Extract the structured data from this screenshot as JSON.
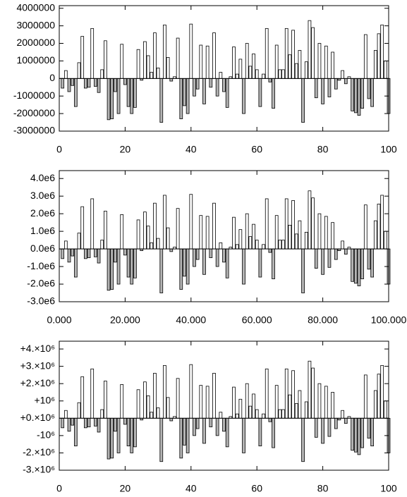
{
  "chart_data": [
    {
      "type": "bar",
      "color_positive": "#ffffff",
      "color_negative": "#b4b4b4",
      "x": [
        1,
        2,
        3,
        4,
        5,
        6,
        7,
        8,
        9,
        10,
        11,
        12,
        13,
        14,
        15,
        16,
        17,
        18,
        19,
        20,
        21,
        22,
        23,
        24,
        25,
        26,
        27,
        28,
        29,
        30,
        31,
        32,
        33,
        34,
        35,
        36,
        37,
        38,
        39,
        40,
        41,
        42,
        43,
        44,
        45,
        46,
        47,
        48,
        49,
        50,
        51,
        52,
        53,
        54,
        55,
        56,
        57,
        58,
        59,
        60,
        61,
        62,
        63,
        64,
        65,
        66,
        67,
        68,
        69,
        70,
        71,
        72,
        73,
        74,
        75,
        76,
        77,
        78,
        79,
        80,
        81,
        82,
        83,
        84,
        85,
        86,
        87,
        88,
        89,
        90,
        91,
        92,
        93,
        94,
        95,
        96,
        97,
        98,
        99,
        100
      ],
      "values": [
        -550000,
        450000,
        -750000,
        -400000,
        -1600000,
        900000,
        2400000,
        -550000,
        -500000,
        2850000,
        -450000,
        -800000,
        500000,
        2150000,
        -2350000,
        -2300000,
        -750000,
        -2000000,
        1950000,
        -350000,
        -1600000,
        -2000000,
        -1650000,
        1650000,
        -100000,
        2100000,
        1300000,
        350000,
        2600000,
        600000,
        -2500000,
        3050000,
        1200000,
        -150000,
        100000,
        2300000,
        -2300000,
        -1550000,
        -2000000,
        3100000,
        -1000000,
        -600000,
        1900000,
        -1450000,
        1850000,
        -500000,
        2600000,
        -1000000,
        350000,
        -750000,
        -1650000,
        100000,
        1800000,
        250000,
        1100000,
        -2000000,
        2000000,
        700000,
        1400000,
        500000,
        -1600000,
        250000,
        2850000,
        -200000,
        -1700000,
        1900000,
        500000,
        500000,
        2850000,
        1350000,
        2750000,
        850000,
        1600000,
        -2500000,
        950000,
        3300000,
        2900000,
        -1100000,
        2000000,
        -1450000,
        1850000,
        -1050000,
        1500000,
        -600000,
        -100000,
        450000,
        -300000,
        100000,
        -1850000,
        -1950000,
        -2100000,
        -1700000,
        2500000,
        -1150000,
        -1600000,
        1600000,
        2550000,
        3050000,
        1000000,
        -2000000
      ],
      "xlim": [
        0,
        100
      ],
      "ylim": [
        -3000000,
        4150000
      ],
      "xticks": [
        0,
        20,
        40,
        60,
        80,
        100
      ],
      "yticks": [
        -3000000,
        -2000000,
        -1000000,
        0,
        1000000,
        2000000,
        3000000,
        4000000
      ]
    },
    {
      "type": "bar",
      "color_positive": "#ffffff",
      "color_negative": "#b4b4b4",
      "x": [
        1,
        2,
        3,
        4,
        5,
        6,
        7,
        8,
        9,
        10,
        11,
        12,
        13,
        14,
        15,
        16,
        17,
        18,
        19,
        20,
        21,
        22,
        23,
        24,
        25,
        26,
        27,
        28,
        29,
        30,
        31,
        32,
        33,
        34,
        35,
        36,
        37,
        38,
        39,
        40,
        41,
        42,
        43,
        44,
        45,
        46,
        47,
        48,
        49,
        50,
        51,
        52,
        53,
        54,
        55,
        56,
        57,
        58,
        59,
        60,
        61,
        62,
        63,
        64,
        65,
        66,
        67,
        68,
        69,
        70,
        71,
        72,
        73,
        74,
        75,
        76,
        77,
        78,
        79,
        80,
        81,
        82,
        83,
        84,
        85,
        86,
        87,
        88,
        89,
        90,
        91,
        92,
        93,
        94,
        95,
        96,
        97,
        98,
        99,
        100
      ],
      "values": [
        -550000,
        450000,
        -750000,
        -400000,
        -1600000,
        900000,
        2400000,
        -550000,
        -500000,
        2850000,
        -450000,
        -800000,
        500000,
        2150000,
        -2350000,
        -2300000,
        -750000,
        -2000000,
        1950000,
        -350000,
        -1600000,
        -2000000,
        -1650000,
        1650000,
        -100000,
        2100000,
        1300000,
        350000,
        2600000,
        600000,
        -2500000,
        3050000,
        1200000,
        -150000,
        100000,
        2300000,
        -2300000,
        -1550000,
        -2000000,
        3100000,
        -1000000,
        -600000,
        1900000,
        -1450000,
        1850000,
        -500000,
        2600000,
        -1000000,
        350000,
        -750000,
        -1650000,
        100000,
        1800000,
        250000,
        1100000,
        -2000000,
        2000000,
        700000,
        1400000,
        500000,
        -1600000,
        250000,
        2850000,
        -200000,
        -1700000,
        1900000,
        500000,
        500000,
        2850000,
        1350000,
        2750000,
        850000,
        1600000,
        -2500000,
        950000,
        3300000,
        2900000,
        -1100000,
        2000000,
        -1450000,
        1850000,
        -1050000,
        1500000,
        -600000,
        -100000,
        450000,
        -300000,
        100000,
        -1850000,
        -1950000,
        -2100000,
        -1700000,
        2500000,
        -1150000,
        -1600000,
        1600000,
        2550000,
        3050000,
        1000000,
        -2000000
      ],
      "xlim": [
        0,
        100
      ],
      "ylim": [
        -3000000,
        4450000
      ],
      "xticks": [
        {
          "value": 0,
          "label": "0.000"
        },
        {
          "value": 20,
          "label": "20.000"
        },
        {
          "value": 40,
          "label": "40.000"
        },
        {
          "value": 60,
          "label": "60.000"
        },
        {
          "value": 80,
          "label": "80.000"
        },
        {
          "value": 100,
          "label": "100.000"
        }
      ],
      "yticks": [
        {
          "value": -3000000,
          "label": "-3.0e6"
        },
        {
          "value": -2000000,
          "label": "-2.0e6"
        },
        {
          "value": -1000000,
          "label": "-1.0e6"
        },
        {
          "value": 0,
          "label": "0.0e6"
        },
        {
          "value": 1000000,
          "label": "1.0e6"
        },
        {
          "value": 2000000,
          "label": "2.0e6"
        },
        {
          "value": 3000000,
          "label": "3.0e6"
        },
        {
          "value": 4000000,
          "label": "4.0e6"
        }
      ]
    },
    {
      "type": "bar",
      "color_positive": "#ffffff",
      "color_negative": "#b4b4b4",
      "x": [
        1,
        2,
        3,
        4,
        5,
        6,
        7,
        8,
        9,
        10,
        11,
        12,
        13,
        14,
        15,
        16,
        17,
        18,
        19,
        20,
        21,
        22,
        23,
        24,
        25,
        26,
        27,
        28,
        29,
        30,
        31,
        32,
        33,
        34,
        35,
        36,
        37,
        38,
        39,
        40,
        41,
        42,
        43,
        44,
        45,
        46,
        47,
        48,
        49,
        50,
        51,
        52,
        53,
        54,
        55,
        56,
        57,
        58,
        59,
        60,
        61,
        62,
        63,
        64,
        65,
        66,
        67,
        68,
        69,
        70,
        71,
        72,
        73,
        74,
        75,
        76,
        77,
        78,
        79,
        80,
        81,
        82,
        83,
        84,
        85,
        86,
        87,
        88,
        89,
        90,
        91,
        92,
        93,
        94,
        95,
        96,
        97,
        98,
        99,
        100
      ],
      "values": [
        -550000,
        450000,
        -750000,
        -400000,
        -1600000,
        900000,
        2400000,
        -550000,
        -500000,
        2850000,
        -450000,
        -800000,
        500000,
        2150000,
        -2350000,
        -2300000,
        -750000,
        -2000000,
        1950000,
        -350000,
        -1600000,
        -2000000,
        -1650000,
        1650000,
        -100000,
        2100000,
        1300000,
        350000,
        2600000,
        600000,
        -2500000,
        3050000,
        1200000,
        -150000,
        100000,
        2300000,
        -2300000,
        -1550000,
        -2000000,
        3100000,
        -1000000,
        -600000,
        1900000,
        -1450000,
        1850000,
        -500000,
        2600000,
        -1000000,
        350000,
        -750000,
        -1650000,
        100000,
        1800000,
        250000,
        1100000,
        -2000000,
        2000000,
        700000,
        1400000,
        500000,
        -1600000,
        250000,
        2850000,
        -200000,
        -1700000,
        1900000,
        500000,
        500000,
        2850000,
        1350000,
        2750000,
        850000,
        1600000,
        -2500000,
        950000,
        3300000,
        2900000,
        -1100000,
        2000000,
        -1450000,
        1850000,
        -1050000,
        1500000,
        -600000,
        -100000,
        450000,
        -300000,
        100000,
        -1850000,
        -1950000,
        -2100000,
        -1700000,
        2500000,
        -1150000,
        -1600000,
        1600000,
        2550000,
        3050000,
        1000000,
        -2000000
      ],
      "xlim": [
        0,
        100
      ],
      "ylim": [
        -3000000,
        4450000
      ],
      "xticks": [
        0,
        20,
        40,
        60,
        80,
        100
      ],
      "yticks": [
        {
          "value": -3000000,
          "label": "-3.×10⁶"
        },
        {
          "value": -2000000,
          "label": "-2.×10⁶"
        },
        {
          "value": -1000000,
          "label": "-10⁶"
        },
        {
          "value": 0,
          "label": "+0.×10⁶"
        },
        {
          "value": 1000000,
          "label": "+10⁶"
        },
        {
          "value": 2000000,
          "label": "+2.×10⁶"
        },
        {
          "value": 3000000,
          "label": "+3.×10⁶"
        },
        {
          "value": 4000000,
          "label": "+4.×10⁶"
        }
      ]
    }
  ]
}
